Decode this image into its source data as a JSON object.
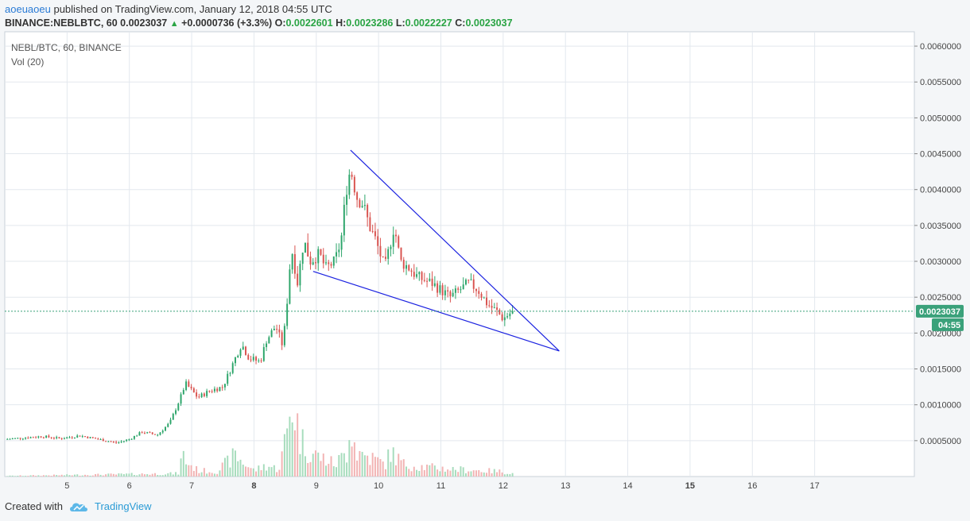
{
  "header": {
    "author": "aoeuaoeu",
    "published_text": "published on TradingView.com, January 12, 2018 04:55 UTC",
    "symbol_line": "BINANCE:NEBLBTC, 60",
    "last": "0.0023037",
    "change": "+0.0000736 (+3.3%)",
    "o_label": "O:",
    "o_value": "0.0022601",
    "h_label": "H:",
    "h_value": "0.0023286",
    "l_label": "L:",
    "l_value": "0.0022227",
    "c_label": "C:",
    "c_value": "0.0023037"
  },
  "legend": {
    "series_label": "NEBL/BTC, 60, BINANCE",
    "volume_label": "Vol (20)"
  },
  "footer": {
    "created_with": "Created with",
    "brand": "TradingView"
  },
  "colors": {
    "up": "#2ca56a",
    "down": "#d9534f",
    "up_volume": "#a6dcbc",
    "down_volume": "#f2b3b3",
    "trendline": "#1a21e0",
    "price_line": "#3aa17a",
    "grid": "#e3e8ee"
  },
  "chart_data": {
    "type": "candlestick",
    "price_axis": {
      "ylim": [
        0.0,
        0.0062
      ],
      "ticks": [
        "0.0060000",
        "0.0055000",
        "0.0050000",
        "0.0045000",
        "0.0040000",
        "0.0035000",
        "0.0030000",
        "0.0025000",
        "0.0020000",
        "0.0015000",
        "0.0010000",
        "0.0005000"
      ],
      "tick_values": [
        0.006,
        0.0055,
        0.005,
        0.0045,
        0.004,
        0.0035,
        0.003,
        0.0025,
        0.002,
        0.0015,
        0.001,
        0.0005
      ]
    },
    "time_axis": {
      "ticks": [
        "5",
        "6",
        "7",
        "8",
        "9",
        "10",
        "11",
        "12",
        "13",
        "14",
        "15",
        "16",
        "17"
      ],
      "tick_days": [
        5,
        6,
        7,
        8,
        9,
        10,
        11,
        12,
        13,
        14,
        15,
        16,
        17
      ],
      "bold_ticks": [
        "8",
        "15"
      ],
      "xlim_days": [
        4.0,
        18.6
      ]
    },
    "last_price_label": "0.0023037",
    "countdown_label": "04:55",
    "last_price": 0.0023037,
    "price_path": [
      [
        4.0,
        0.00052
      ],
      [
        4.3,
        0.00054
      ],
      [
        4.6,
        0.00056
      ],
      [
        4.9,
        0.00053
      ],
      [
        5.2,
        0.00057
      ],
      [
        5.5,
        0.00052
      ],
      [
        5.8,
        0.00047
      ],
      [
        6.0,
        0.00052
      ],
      [
        6.2,
        0.00062
      ],
      [
        6.45,
        0.00058
      ],
      [
        6.65,
        0.00075
      ],
      [
        6.82,
        0.0011
      ],
      [
        6.9,
        0.0013
      ],
      [
        7.1,
        0.0011
      ],
      [
        7.3,
        0.0012
      ],
      [
        7.5,
        0.00125
      ],
      [
        7.65,
        0.00155
      ],
      [
        7.8,
        0.00185
      ],
      [
        7.92,
        0.00165
      ],
      [
        8.1,
        0.0016
      ],
      [
        8.2,
        0.0019
      ],
      [
        8.35,
        0.0021
      ],
      [
        8.45,
        0.00185
      ],
      [
        8.5,
        0.0021
      ],
      [
        8.6,
        0.0032
      ],
      [
        8.7,
        0.0027
      ],
      [
        8.8,
        0.0033
      ],
      [
        8.9,
        0.003
      ],
      [
        9.05,
        0.0031
      ],
      [
        9.15,
        0.0029
      ],
      [
        9.3,
        0.003
      ],
      [
        9.4,
        0.0033
      ],
      [
        9.48,
        0.004
      ],
      [
        9.55,
        0.0043
      ],
      [
        9.65,
        0.0039
      ],
      [
        9.75,
        0.0038
      ],
      [
        9.85,
        0.0035
      ],
      [
        9.95,
        0.0033
      ],
      [
        10.1,
        0.0029
      ],
      [
        10.2,
        0.0033
      ],
      [
        10.25,
        0.0035
      ],
      [
        10.35,
        0.003
      ],
      [
        10.5,
        0.0029
      ],
      [
        10.6,
        0.0028
      ],
      [
        10.7,
        0.00275
      ],
      [
        10.85,
        0.0027
      ],
      [
        11.0,
        0.0026
      ],
      [
        11.15,
        0.0025
      ],
      [
        11.3,
        0.0026
      ],
      [
        11.45,
        0.0027
      ],
      [
        11.6,
        0.0026
      ],
      [
        11.75,
        0.0024
      ],
      [
        11.9,
        0.0023
      ],
      [
        12.0,
        0.0022
      ],
      [
        12.15,
        0.0023037
      ]
    ],
    "volume_path": [
      [
        4.0,
        1e-05
      ],
      [
        6.8,
        5e-05
      ],
      [
        6.85,
        0.0004
      ],
      [
        6.9,
        0.00025
      ],
      [
        7.1,
        0.0001
      ],
      [
        7.4,
        8e-05
      ],
      [
        7.7,
        0.00035
      ],
      [
        7.8,
        0.00025
      ],
      [
        8.0,
        0.0001
      ],
      [
        8.2,
        0.00018
      ],
      [
        8.4,
        0.00012
      ],
      [
        8.55,
        0.0008
      ],
      [
        8.6,
        0.0013
      ],
      [
        8.75,
        0.0006
      ],
      [
        8.9,
        0.0004
      ],
      [
        9.1,
        0.0003
      ],
      [
        9.3,
        0.0002
      ],
      [
        9.5,
        0.0004
      ],
      [
        9.52,
        0.001
      ],
      [
        9.65,
        0.0004
      ],
      [
        9.9,
        0.0003
      ],
      [
        10.1,
        0.0002
      ],
      [
        10.2,
        0.0004
      ],
      [
        10.4,
        0.0002
      ],
      [
        10.8,
        0.00015
      ],
      [
        11.2,
        0.00012
      ],
      [
        11.6,
        0.0001
      ],
      [
        12.0,
        8e-05
      ],
      [
        12.15,
        5e-05
      ]
    ],
    "trendlines": [
      {
        "name": "upper",
        "from": [
          9.55,
          0.00455
        ],
        "to": [
          12.9,
          0.00175
        ]
      },
      {
        "name": "lower",
        "from": [
          8.95,
          0.00286
        ],
        "to": [
          12.9,
          0.00175
        ]
      }
    ]
  }
}
